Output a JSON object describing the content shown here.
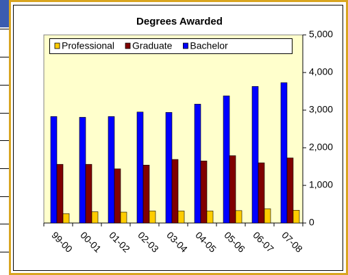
{
  "chart_data": {
    "type": "bar",
    "title": "Degrees Awarded",
    "categories": [
      "99-00",
      "00-01",
      "01-02",
      "02-03",
      "03-04",
      "04-05",
      "05-06",
      "06-07",
      "07-08"
    ],
    "series": [
      {
        "name": "Professional",
        "color": "#ffcc00",
        "values": [
          250,
          300,
          290,
          320,
          320,
          320,
          330,
          380,
          340
        ]
      },
      {
        "name": "Graduate",
        "color": "#800000",
        "values": [
          1560,
          1560,
          1440,
          1540,
          1690,
          1650,
          1790,
          1600,
          1730
        ]
      },
      {
        "name": "Bachelor",
        "color": "#0000ff",
        "values": [
          2830,
          2810,
          2830,
          2950,
          2940,
          3160,
          3380,
          3630,
          3730
        ]
      }
    ],
    "ylim": [
      0,
      5000
    ],
    "yticks": [
      0,
      {
        "value": 1000,
        "label": "1,000"
      },
      {
        "value": 2000,
        "label": "2,000"
      },
      {
        "value": 3000,
        "label": "3,000"
      },
      {
        "value": 4000,
        "label": "4,000"
      },
      {
        "value": 5000,
        "label": "5,000"
      }
    ],
    "legend": "top",
    "grid": false
  }
}
